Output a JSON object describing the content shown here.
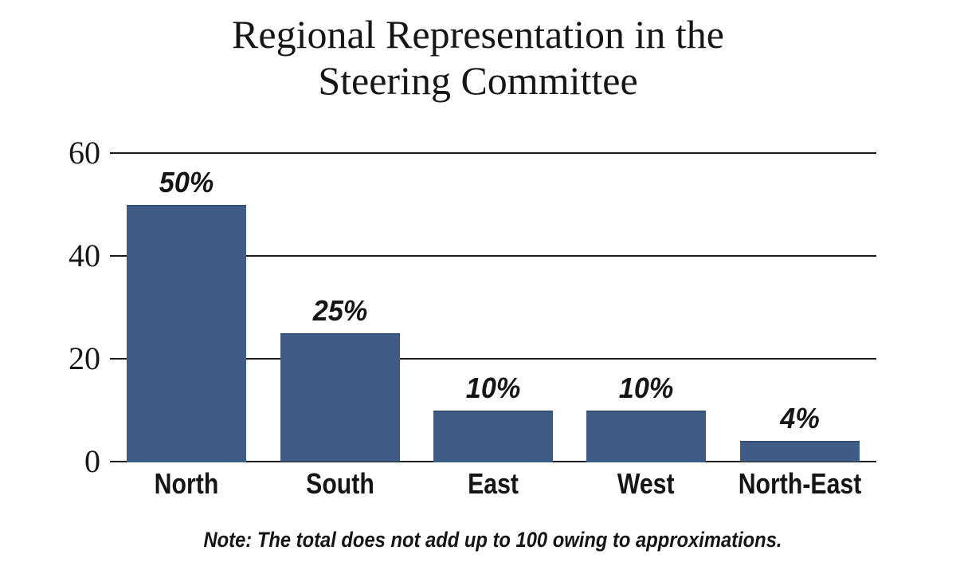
{
  "title": {
    "line1": "Regional Representation in the",
    "line2": "Steering Committee"
  },
  "note": "Note: The total does not add up to 100 owing to approximations.",
  "colors": {
    "bar": "#3E5C85",
    "bar_top_edge": "#33507B",
    "gridline": "#1B1B1B",
    "text": "#161616",
    "background": "#FFFFFF"
  },
  "chart_data": {
    "type": "bar",
    "title": "Regional Representation in the Steering Committee",
    "categories": [
      "North",
      "South",
      "East",
      "West",
      "North-East"
    ],
    "values": [
      50,
      25,
      10,
      10,
      4
    ],
    "data_labels": [
      "50%",
      "25%",
      "10%",
      "10%",
      "4%"
    ],
    "xlabel": "",
    "ylabel": "",
    "ylim": [
      0,
      60
    ],
    "yticks": [
      60,
      40,
      20,
      0
    ],
    "grid": true,
    "legend": "none",
    "note": "Note: The total does not add up to 100 owing to approximations."
  }
}
